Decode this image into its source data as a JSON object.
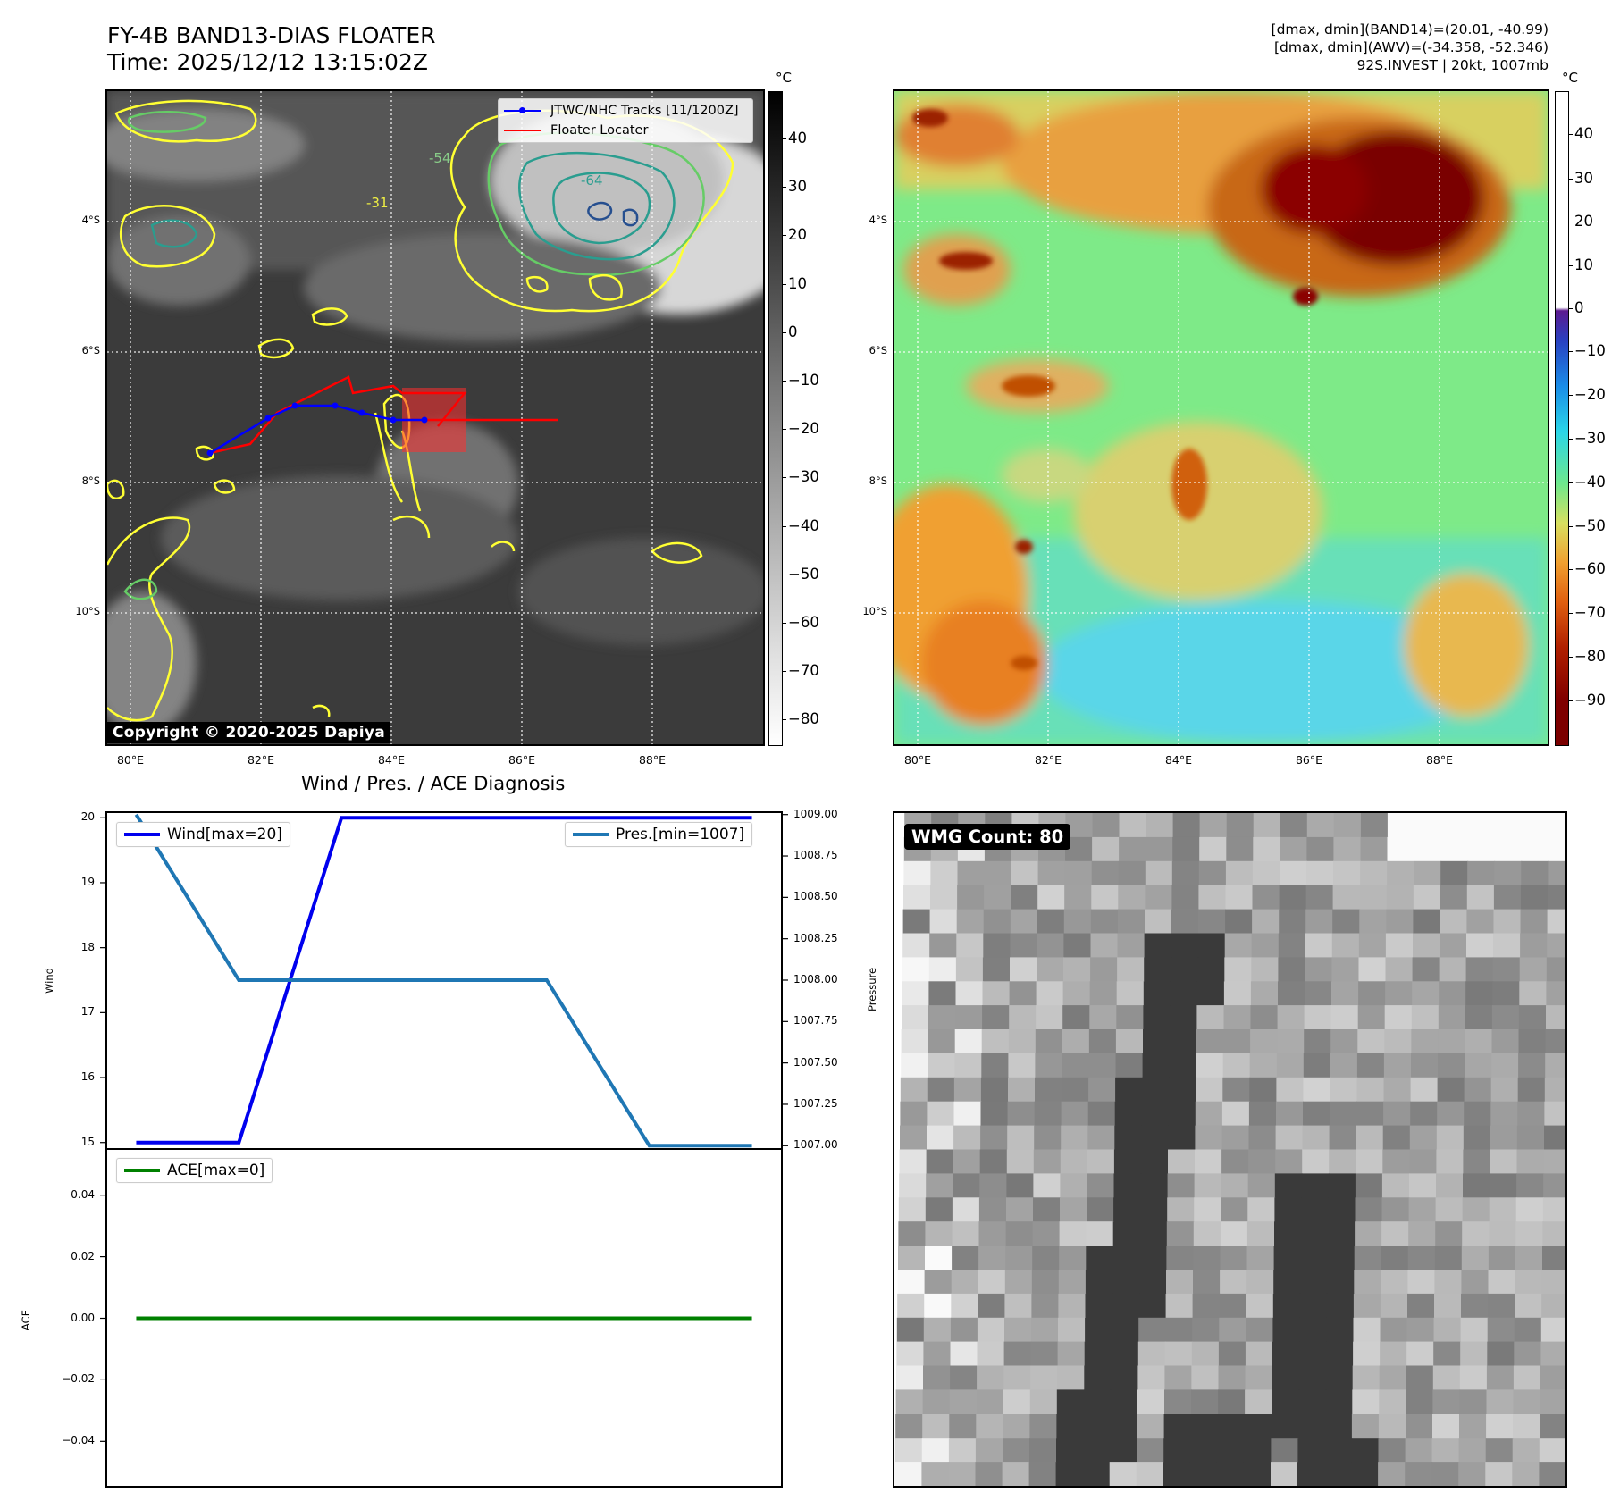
{
  "header": {
    "title_line1": "FY-4B BAND13-DIAS FLOATER",
    "title_line2": "Time: 2025/12/12 13:15:02Z",
    "info_line1": "[dmax, dmin](BAND14)=(20.01, -40.99)",
    "info_line2": "[dmax, dmin](AWV)=(-34.358, -52.346)",
    "info_line3": "92S.INVEST | 20kt, 1007mb"
  },
  "ir_panel": {
    "legend_track": "JTWC/NHC Tracks [11/1200Z]",
    "legend_floater": "Floater Locater",
    "copyright": "Copyright © 2020-2025 Dapiya",
    "contour_labels": [
      "-31",
      "-54",
      "-64"
    ],
    "colors": {
      "track": "#0000ff",
      "floater": "#ff0000",
      "contour_31": "#ffff33",
      "contour_41": "#66cc66",
      "contour_54": "#2a9d8f",
      "contour_64": "#264f8f"
    }
  },
  "map_axes": {
    "lat_labels": [
      "4°S",
      "6°S",
      "8°S",
      "10°S"
    ],
    "lon_labels": [
      "80°E",
      "82°E",
      "84°E",
      "86°E",
      "88°E"
    ]
  },
  "colorbar_left": {
    "unit": "°C",
    "ticks": [
      "40",
      "30",
      "20",
      "10",
      "0",
      "−10",
      "−20",
      "−30",
      "−40",
      "−50",
      "−60",
      "−70",
      "−80"
    ]
  },
  "colorbar_right": {
    "unit": "°C",
    "ticks": [
      "40",
      "30",
      "20",
      "10",
      "0",
      "−10",
      "−20",
      "−30",
      "−40",
      "−50",
      "−60",
      "−70",
      "−80",
      "−90"
    ]
  },
  "diagnosis": {
    "title": "Wind / Pres. / ACE Diagnosis",
    "wind_label": "Wind",
    "pressure_label": "Pressure",
    "ace_label": "ACE",
    "legend_wind": "Wind[max=20]",
    "legend_pres": "Pres.[min=1007]",
    "legend_ace": "ACE[max=0]",
    "wind_ticks": [
      "20",
      "19",
      "18",
      "17",
      "16",
      "15"
    ],
    "pres_ticks": [
      "1009.00",
      "1008.75",
      "1008.50",
      "1008.25",
      "1008.00",
      "1007.75",
      "1007.50",
      "1007.25",
      "1007.00"
    ],
    "ace_ticks": [
      "0.04",
      "0.02",
      "0.00",
      "−0.02",
      "−0.04"
    ],
    "colors": {
      "wind": "#0000ee",
      "pressure": "#1f77b4",
      "ace": "#008000"
    }
  },
  "wmg": {
    "label": "WMG Count: 80"
  },
  "chart_data": [
    {
      "type": "line",
      "title": "",
      "x": [
        0,
        1,
        2,
        3,
        4,
        5,
        6
      ],
      "series": [
        {
          "name": "Wind[max=20]",
          "axis": "left",
          "values": [
            15,
            15,
            20,
            20,
            20,
            20,
            20
          ]
        },
        {
          "name": "Pres.[min=1007]",
          "axis": "right",
          "values": [
            1009,
            1008,
            1008,
            1008,
            1008,
            1007,
            1007
          ]
        }
      ],
      "ylabel": "Wind",
      "ylim": [
        14.9,
        20.1
      ],
      "y2label": "Pressure",
      "y2lim": [
        1006.98,
        1009.02
      ],
      "legend": "top"
    },
    {
      "type": "line",
      "title": "",
      "x": [
        0,
        1,
        2,
        3,
        4,
        5,
        6
      ],
      "series": [
        {
          "name": "ACE[max=0]",
          "values": [
            0,
            0,
            0,
            0,
            0,
            0,
            0
          ]
        }
      ],
      "ylabel": "ACE",
      "ylim": [
        -0.055,
        0.055
      ],
      "legend": "top-left"
    }
  ]
}
